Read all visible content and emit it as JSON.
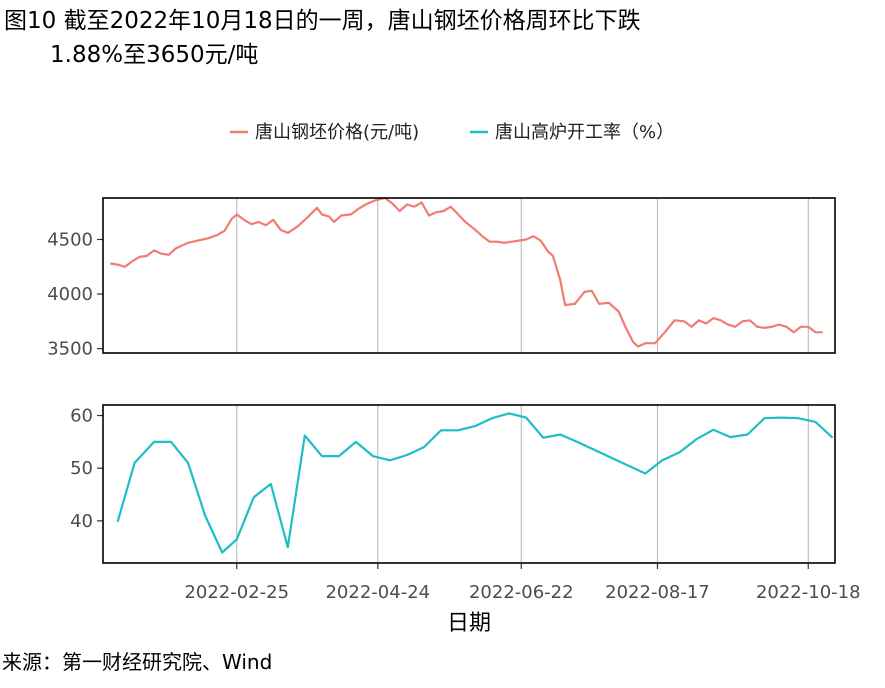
{
  "title": {
    "line1": "图10  截至2022年10月18日的一周，唐山钢坯价格周环比下跌",
    "line2": "1.88%至3650元/吨"
  },
  "source": "来源：第一财经研究院、Wind",
  "chart_data": {
    "type": "line",
    "xlabel": "日期",
    "x_range": [
      "2022-01-01",
      "2022-10-29"
    ],
    "x_ticks": [
      "2022-02-25",
      "2022-04-24",
      "2022-06-22",
      "2022-08-17",
      "2022-10-18"
    ],
    "legend": {
      "position": "top",
      "items": [
        {
          "name": "唐山钢坯价格(元/吨)",
          "color": "#F07C73"
        },
        {
          "name": "唐山高炉开工率（%）",
          "color": "#1FBEC4"
        }
      ]
    },
    "panels": [
      {
        "series": "唐山钢坯价格(元/吨)",
        "color": "#F07C73",
        "ylim": [
          3460,
          4880
        ],
        "y_ticks": [
          3500,
          4000,
          4500
        ],
        "points": [
          [
            "2022-01-04",
            4280
          ],
          [
            "2022-01-07",
            4270
          ],
          [
            "2022-01-10",
            4250
          ],
          [
            "2022-01-13",
            4300
          ],
          [
            "2022-01-16",
            4340
          ],
          [
            "2022-01-19",
            4350
          ],
          [
            "2022-01-22",
            4400
          ],
          [
            "2022-01-25",
            4370
          ],
          [
            "2022-01-28",
            4360
          ],
          [
            "2022-01-31",
            4420
          ],
          [
            "2022-02-05",
            4470
          ],
          [
            "2022-02-09",
            4490
          ],
          [
            "2022-02-13",
            4510
          ],
          [
            "2022-02-17",
            4540
          ],
          [
            "2022-02-20",
            4580
          ],
          [
            "2022-02-23",
            4690
          ],
          [
            "2022-02-25",
            4730
          ],
          [
            "2022-02-28",
            4680
          ],
          [
            "2022-03-03",
            4640
          ],
          [
            "2022-03-06",
            4660
          ],
          [
            "2022-03-09",
            4630
          ],
          [
            "2022-03-12",
            4680
          ],
          [
            "2022-03-15",
            4590
          ],
          [
            "2022-03-18",
            4560
          ],
          [
            "2022-03-22",
            4620
          ],
          [
            "2022-03-26",
            4700
          ],
          [
            "2022-03-30",
            4790
          ],
          [
            "2022-04-01",
            4730
          ],
          [
            "2022-04-04",
            4710
          ],
          [
            "2022-04-06",
            4660
          ],
          [
            "2022-04-09",
            4720
          ],
          [
            "2022-04-13",
            4730
          ],
          [
            "2022-04-16",
            4780
          ],
          [
            "2022-04-19",
            4820
          ],
          [
            "2022-04-23",
            4860
          ],
          [
            "2022-04-27",
            4880
          ],
          [
            "2022-04-30",
            4830
          ],
          [
            "2022-05-03",
            4760
          ],
          [
            "2022-05-06",
            4820
          ],
          [
            "2022-05-09",
            4800
          ],
          [
            "2022-05-12",
            4840
          ],
          [
            "2022-05-15",
            4720
          ],
          [
            "2022-05-18",
            4750
          ],
          [
            "2022-05-21",
            4760
          ],
          [
            "2022-05-24",
            4800
          ],
          [
            "2022-05-27",
            4730
          ],
          [
            "2022-05-30",
            4660
          ],
          [
            "2022-06-03",
            4590
          ],
          [
            "2022-06-06",
            4530
          ],
          [
            "2022-06-09",
            4480
          ],
          [
            "2022-06-12",
            4480
          ],
          [
            "2022-06-15",
            4470
          ],
          [
            "2022-06-18",
            4480
          ],
          [
            "2022-06-21",
            4490
          ],
          [
            "2022-06-24",
            4500
          ],
          [
            "2022-06-27",
            4530
          ],
          [
            "2022-06-30",
            4490
          ],
          [
            "2022-07-03",
            4390
          ],
          [
            "2022-07-05",
            4350
          ],
          [
            "2022-07-08",
            4130
          ],
          [
            "2022-07-10",
            3900
          ],
          [
            "2022-07-14",
            3910
          ],
          [
            "2022-07-18",
            4020
          ],
          [
            "2022-07-21",
            4030
          ],
          [
            "2022-07-24",
            3910
          ],
          [
            "2022-07-28",
            3920
          ],
          [
            "2022-08-01",
            3840
          ],
          [
            "2022-08-04",
            3690
          ],
          [
            "2022-08-07",
            3560
          ],
          [
            "2022-08-09",
            3520
          ],
          [
            "2022-08-12",
            3550
          ],
          [
            "2022-08-16",
            3550
          ],
          [
            "2022-08-20",
            3650
          ],
          [
            "2022-08-24",
            3760
          ],
          [
            "2022-08-28",
            3750
          ],
          [
            "2022-08-31",
            3700
          ],
          [
            "2022-09-03",
            3760
          ],
          [
            "2022-09-06",
            3730
          ],
          [
            "2022-09-09",
            3780
          ],
          [
            "2022-09-12",
            3760
          ],
          [
            "2022-09-15",
            3720
          ],
          [
            "2022-09-18",
            3700
          ],
          [
            "2022-09-21",
            3750
          ],
          [
            "2022-09-24",
            3760
          ],
          [
            "2022-09-27",
            3700
          ],
          [
            "2022-09-30",
            3690
          ],
          [
            "2022-10-03",
            3700
          ],
          [
            "2022-10-06",
            3720
          ],
          [
            "2022-10-09",
            3700
          ],
          [
            "2022-10-12",
            3650
          ],
          [
            "2022-10-15",
            3700
          ],
          [
            "2022-10-18",
            3700
          ],
          [
            "2022-10-21",
            3650
          ],
          [
            "2022-10-24",
            3650
          ]
        ]
      },
      {
        "series": "唐山高炉开工率（%）",
        "color": "#1FBEC4",
        "ylim": [
          32,
          62
        ],
        "y_ticks": [
          40,
          50,
          60
        ],
        "points": [
          [
            "2022-01-07",
            39.8
          ],
          [
            "2022-01-14",
            51
          ],
          [
            "2022-01-22",
            55
          ],
          [
            "2022-01-29",
            55
          ],
          [
            "2022-02-05",
            51
          ],
          [
            "2022-02-12",
            41
          ],
          [
            "2022-02-19",
            34
          ],
          [
            "2022-02-25",
            36.5
          ],
          [
            "2022-03-04",
            44.5
          ],
          [
            "2022-03-11",
            47
          ],
          [
            "2022-03-18",
            35
          ],
          [
            "2022-03-25",
            56.2
          ],
          [
            "2022-04-01",
            52.3
          ],
          [
            "2022-04-08",
            52.3
          ],
          [
            "2022-04-15",
            55
          ],
          [
            "2022-04-22",
            52.3
          ],
          [
            "2022-04-29",
            51.5
          ],
          [
            "2022-05-06",
            52.5
          ],
          [
            "2022-05-13",
            54
          ],
          [
            "2022-05-20",
            57.2
          ],
          [
            "2022-05-27",
            57.2
          ],
          [
            "2022-06-03",
            58
          ],
          [
            "2022-06-10",
            59.5
          ],
          [
            "2022-06-17",
            60.4
          ],
          [
            "2022-06-24",
            59.6
          ],
          [
            "2022-07-01",
            55.8
          ],
          [
            "2022-07-08",
            56.4
          ],
          [
            "2022-07-15",
            55
          ],
          [
            "2022-07-22",
            53.5
          ],
          [
            "2022-07-29",
            52
          ],
          [
            "2022-08-05",
            50.5
          ],
          [
            "2022-08-12",
            49
          ],
          [
            "2022-08-19",
            51.5
          ],
          [
            "2022-08-26",
            53
          ],
          [
            "2022-09-02",
            55.5
          ],
          [
            "2022-09-09",
            57.3
          ],
          [
            "2022-09-16",
            55.9
          ],
          [
            "2022-09-23",
            56.4
          ],
          [
            "2022-09-30",
            59.5
          ],
          [
            "2022-10-07",
            59.6
          ],
          [
            "2022-10-14",
            59.5
          ],
          [
            "2022-10-21",
            58.8
          ],
          [
            "2022-10-28",
            55.8
          ]
        ]
      }
    ]
  }
}
